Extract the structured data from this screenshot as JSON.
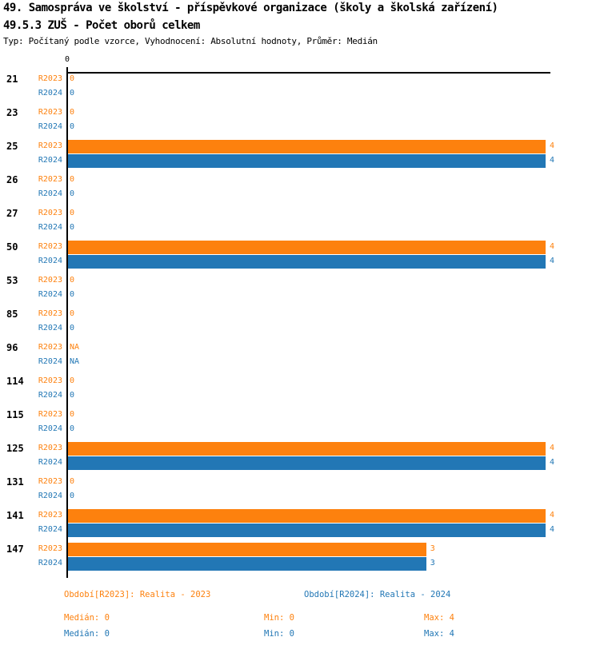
{
  "header": {
    "title": "49. Samospráva ve školství - příspěvkové organizace (školy a školská zařízení)",
    "subtitle": "49.5.3 ZUŠ - Počet oborů celkem",
    "meta": "Typ: Počítaný podle vzorce, Vyhodnocení: Absolutní hodnoty, Průměr: Medián"
  },
  "colors": {
    "r2023": "#fd810e",
    "r2024": "#2277b5",
    "axis": "#000000"
  },
  "chart_data": {
    "type": "bar",
    "orientation": "horizontal",
    "title": "49.5.3 ZUŠ - Počet oborů celkem",
    "xlim": [
      0,
      4
    ],
    "xticks": [
      "0"
    ],
    "grid": false,
    "legend_position": "bottom",
    "categories": [
      "21",
      "23",
      "25",
      "26",
      "27",
      "50",
      "53",
      "85",
      "96",
      "114",
      "115",
      "125",
      "131",
      "141",
      "147"
    ],
    "series": [
      {
        "name": "R2023",
        "color": "#fd810e",
        "values": [
          0,
          0,
          4,
          0,
          0,
          4,
          0,
          0,
          "NA",
          0,
          0,
          4,
          0,
          4,
          3
        ]
      },
      {
        "name": "R2024",
        "color": "#2277b5",
        "values": [
          0,
          0,
          4,
          0,
          0,
          4,
          0,
          0,
          "NA",
          0,
          0,
          4,
          0,
          4,
          3
        ]
      }
    ]
  },
  "footer": {
    "legend": [
      {
        "label": "Období[R2023]: Realita - 2023",
        "color": "#fd810e"
      },
      {
        "label": "Období[R2024]: Realita - 2024",
        "color": "#2277b5"
      }
    ],
    "stats": [
      {
        "median": "Medián: 0",
        "min": "Min: 0",
        "max": "Max: 4",
        "color": "#fd810e"
      },
      {
        "median": "Medián: 0",
        "min": "Min: 0",
        "max": "Max: 4",
        "color": "#2277b5"
      }
    ]
  }
}
